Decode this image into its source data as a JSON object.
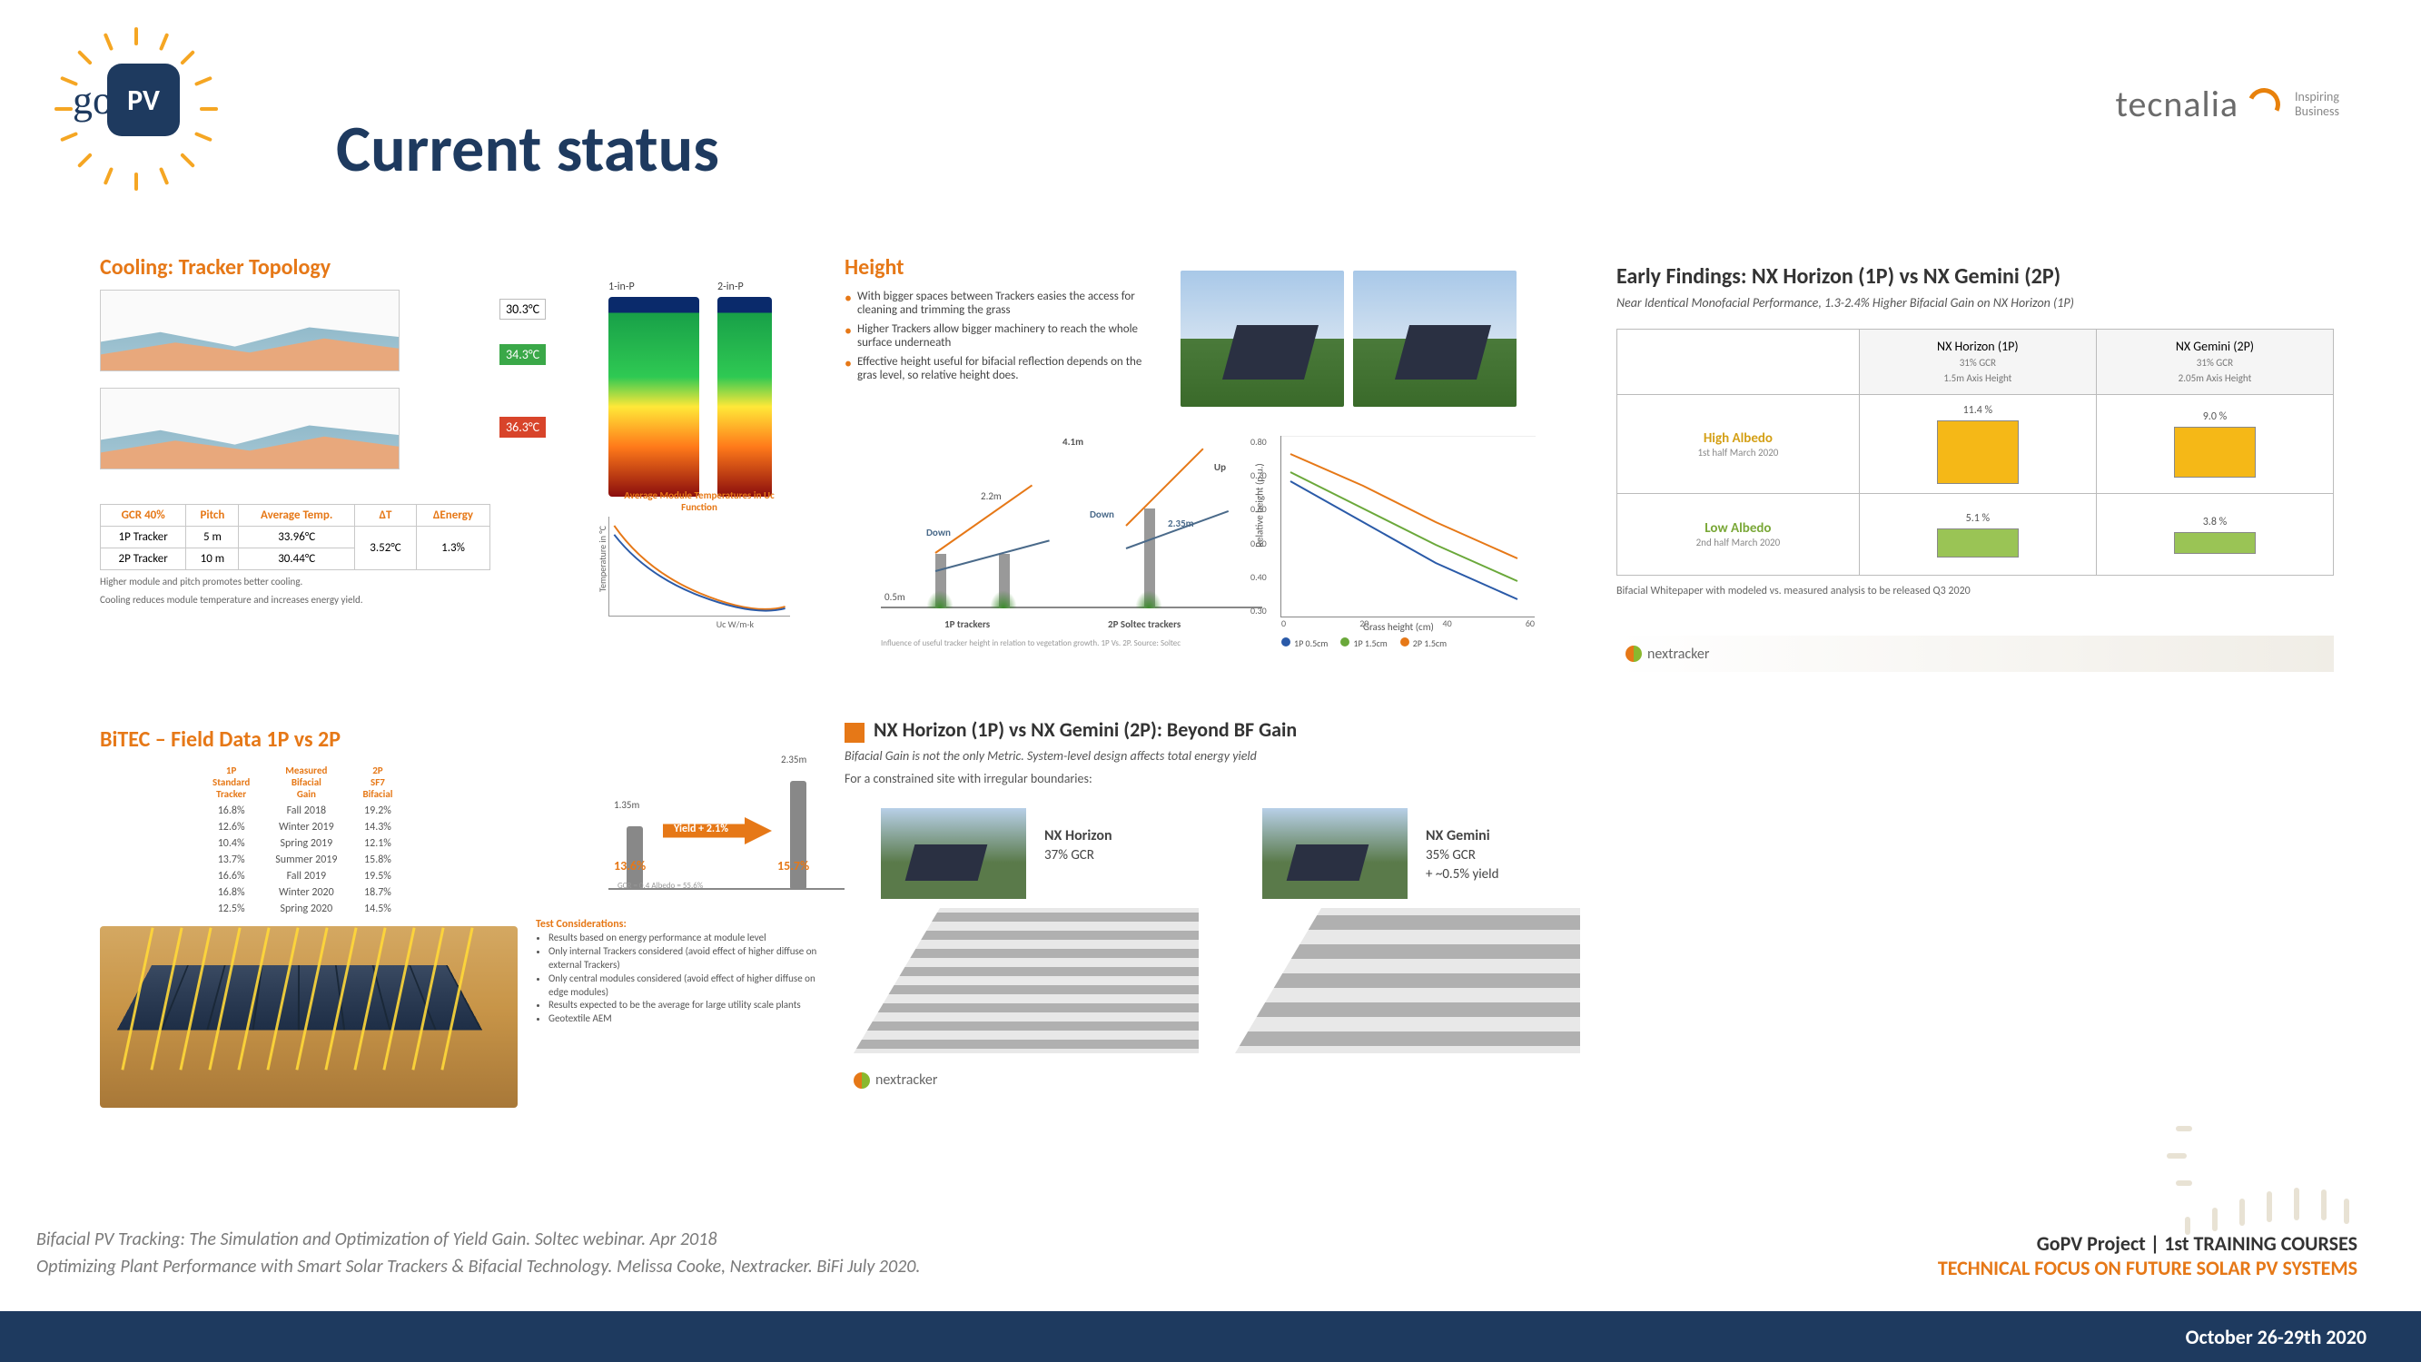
{
  "title": "Current status",
  "brand": {
    "go": "go",
    "pv": "PV",
    "tecnalia": "tecnalia",
    "tecnalia_sub": "Inspiring\nBusiness"
  },
  "cooling": {
    "title": "Cooling: Tracker Topology",
    "labels_1inp": "1-in-P",
    "labels_2inp": "2-in-P",
    "temp1": "30.3°C",
    "temp2": "34.3°C",
    "temp3": "36.3°C",
    "avg_caption": "Average Module Temperatures in Uc Function",
    "xaxis": "Uc W/m-k",
    "yaxis": "Temperature in °C",
    "table": {
      "headers": [
        "GCR 40%",
        "Pitch",
        "Average Temp.",
        "ΔT",
        "ΔEnergy"
      ],
      "rows": [
        [
          "1P Tracker",
          "5 m",
          "33.96°C",
          "3.52°C",
          "1.3%"
        ],
        [
          "2P Tracker",
          "10 m",
          "30.44°C",
          "",
          ""
        ]
      ]
    },
    "note1": "Higher module and pitch promotes better cooling.",
    "note2": "Cooling reduces module temperature and increases energy yield."
  },
  "bitec": {
    "title": "BiTEC – Field Data 1P vs 2P",
    "cols": [
      "1P Standard Tracker",
      "Measured Bifacial Gain",
      "2P SF7 Bifacial"
    ],
    "rows": [
      [
        "16.8%",
        "Fall 2018",
        "19.2%"
      ],
      [
        "12.6%",
        "Winter 2019",
        "14.3%"
      ],
      [
        "10.4%",
        "Spring 2019",
        "12.1%"
      ],
      [
        "13.7%",
        "Summer 2019",
        "15.8%"
      ],
      [
        "16.6%",
        "Fall 2019",
        "19.5%"
      ],
      [
        "16.8%",
        "Winter 2020",
        "18.7%"
      ],
      [
        "12.5%",
        "Spring 2020",
        "14.5%"
      ]
    ],
    "h1": "1.35m",
    "h2": "2.35m",
    "yield_label": "Yield + 2.1%",
    "v1": "13.6%",
    "v2": "15.7%",
    "gcr_note": "GCR = 0.4   Albedo = 55.6%",
    "test_hdr": "Test Considerations:",
    "test_items": [
      "Results based on energy performance at module level",
      "Only internal Trackers considered (avoid effect of higher diffuse on external Trackers)",
      "Only central modules considered (avoid effect of higher diffuse on edge modules)",
      "Results expected to be the average for large utility scale plants",
      "Geotextile AEM"
    ]
  },
  "height": {
    "title": "Height",
    "bullets": [
      "With bigger spaces between Trackers easies the access for cleaning and trimming the grass",
      "Higher Trackers allow bigger machinery to reach the whole surface underneath",
      "Effective height useful for bifacial reflection depends on the gras level, so relative height does."
    ],
    "h_up": "Up",
    "h_down": "Down",
    "h_41": "4.1m",
    "h_22": "2.2m",
    "h_235": "2.35m",
    "h_05": "0.5m",
    "cap1": "1P trackers",
    "cap2": "2P Soltec trackers",
    "xaxis": "Grass height (cm)",
    "yaxis": "Relative height (p.u.)",
    "xticks": [
      "0",
      "20",
      "40",
      "60"
    ],
    "yticks": [
      "0.30",
      "0.40",
      "0.50",
      "0.60",
      "0.70",
      "0.80"
    ],
    "legend": [
      {
        "label": "1P 0.5cm",
        "color": "#2a5aa8"
      },
      {
        "label": "1P 1.5cm",
        "color": "#6aa83a"
      },
      {
        "label": "2P 1.5cm",
        "color": "#e67817"
      }
    ],
    "subcaption": "Influence of useful tracker height in relation to vegetation growth. 1P Vs. 2P. Source: Soltec"
  },
  "nx_beyond": {
    "title": "NX Horizon (1P) vs NX Gemini (2P): Beyond BF Gain",
    "sub": "Bifacial Gain is not the only Metric. System-level design affects total energy yield",
    "note": "For a constrained site with irregular boundaries:",
    "left": {
      "name": "NX Horizon",
      "gcr": "37% GCR"
    },
    "right": {
      "name": "NX Gemini",
      "gcr": "35% GCR",
      "extra": "+ ~0.5% yield"
    },
    "footer_brand": "nextracker"
  },
  "early": {
    "title": "Early Findings: NX Horizon (1P) vs NX Gemini (2P)",
    "sub": "Near Identical Monofacial Performance, 1.3-2.4% Higher Bifacial Gain on NX Horizon (1P)",
    "col1": {
      "name": "NX Horizon (1P)",
      "sub": "31% GCR\n1.5m Axis Height"
    },
    "col2": {
      "name": "NX Gemini (2P)",
      "sub": "31% GCR\n2.05m Axis Height"
    },
    "rows": [
      {
        "label": "High Albedo",
        "sub": "1st half  March 2020",
        "color": "ha",
        "v1": "11.4 %",
        "h1": 70,
        "v2": "9.0 %",
        "h2": 56,
        "bar": "bar-yellow"
      },
      {
        "label": "Low Albedo",
        "sub": "2nd half  March 2020",
        "color": "la",
        "v1": "5.1 %",
        "h1": 32,
        "v2": "3.8 %",
        "h2": 24,
        "bar": "bar-green"
      }
    ],
    "note": "Bifacial Whitepaper with modeled vs. measured analysis to be released Q3 2020",
    "footer_brand": "nextracker"
  },
  "footer": {
    "ref1": "Bifacial PV Tracking: The Simulation and Optimization of Yield Gain. Soltec webinar. Apr 2018",
    "ref2": "Optimizing Plant Performance with Smart Solar Trackers & Bifacial Technology. Melissa Cooke, Nextracker. BiFi July 2020.",
    "proj": "GoPV Project | 1st TRAINING COURSES",
    "focus": "TECHNICAL FOCUS ON FUTURE SOLAR PV SYSTEMS",
    "date": "October 26-29th 2020"
  },
  "colors": {
    "orange": "#e67817",
    "navy": "#1e3a5f",
    "yellow": "#f5b817",
    "green": "#9ac455",
    "blue_line": "#2a5aa8",
    "green_line": "#6aa83a"
  }
}
